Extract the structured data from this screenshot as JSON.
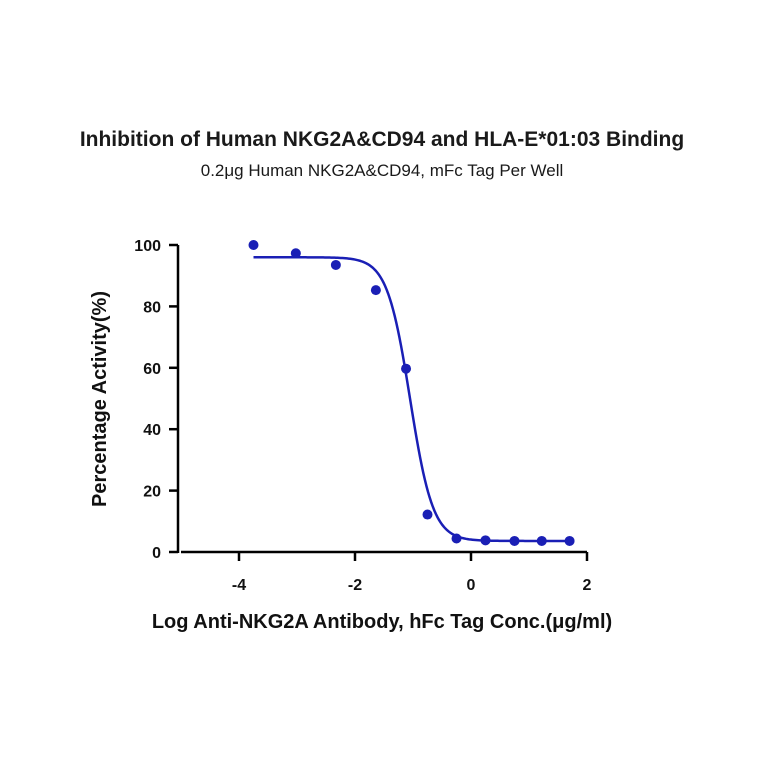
{
  "chart_data": {
    "type": "scatter",
    "title": "Inhibition of Human NKG2A&CD94 and HLA-E*01:03 Binding",
    "subtitle": "0.2μg Human NKG2A&CD94, mFc Tag Per Well",
    "xlabel": "Log Anti-NKG2A Antibody, hFc Tag Conc.(μg/ml)",
    "ylabel": "Percentage Activity(%)",
    "xlim": [
      -5,
      2
    ],
    "ylim": [
      0,
      100
    ],
    "xticks": [
      -4,
      -2,
      0,
      2
    ],
    "xtick_labels": [
      "-4",
      "-2",
      "0",
      "2"
    ],
    "yticks": [
      0,
      20,
      40,
      60,
      80,
      100
    ],
    "ytick_labels": [
      "0",
      "20",
      "40",
      "60",
      "80",
      "100"
    ],
    "grid": false,
    "color": "#1a1fb5",
    "series": [
      {
        "points": {
          "x": [
            -3.75,
            -3.02,
            -2.33,
            -1.64,
            -1.12,
            -0.75,
            -0.25,
            0.25,
            0.75,
            1.22,
            1.7
          ],
          "y": [
            100,
            97.3,
            93.5,
            85.3,
            59.7,
            12.2,
            4.4,
            3.8,
            3.6,
            3.6,
            3.6
          ]
        },
        "fit": {
          "model": "4PL",
          "top": 96,
          "bottom": 3.6,
          "log_ic50": -1.05,
          "hill_slope": -2.2,
          "x_range": [
            -3.75,
            1.72
          ]
        }
      }
    ]
  }
}
